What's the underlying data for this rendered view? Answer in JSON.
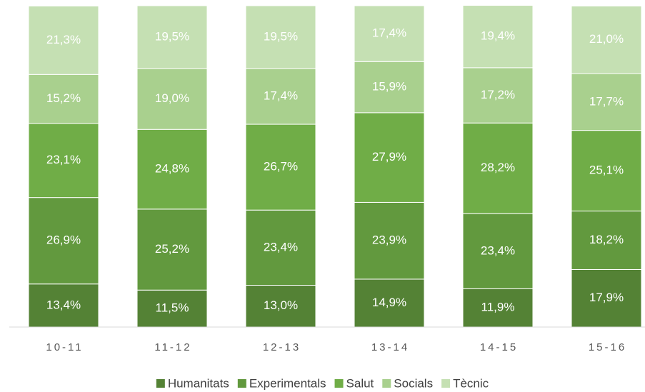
{
  "chart_data": {
    "type": "stacked_bar",
    "categories": [
      "10-11",
      "11-12",
      "12-13",
      "13-14",
      "14-15",
      "15-16"
    ],
    "ylim": [
      0,
      100
    ],
    "legend": "bottom",
    "series": [
      {
        "name": "Humanitats",
        "color": "#548235",
        "values": [
          13.4,
          11.5,
          13.0,
          14.9,
          11.9,
          17.9
        ],
        "value_labels": [
          "13,4%",
          "11,5%",
          "13,0%",
          "14,9%",
          "11,9%",
          "17,9%"
        ]
      },
      {
        "name": "Experimentals",
        "color": "#62993e",
        "values": [
          26.9,
          25.2,
          23.4,
          23.9,
          23.4,
          18.2
        ],
        "value_labels": [
          "26,9%",
          "25,2%",
          "23,4%",
          "23,9%",
          "23,4%",
          "18,2%"
        ]
      },
      {
        "name": "Salut",
        "color": "#70ad47",
        "values": [
          23.1,
          24.8,
          26.7,
          27.9,
          28.2,
          25.1
        ],
        "value_labels": [
          "23,1%",
          "24,8%",
          "26,7%",
          "27,9%",
          "28,2%",
          "25,1%"
        ]
      },
      {
        "name": "Socials",
        "color": "#a9d08e",
        "values": [
          15.2,
          19.0,
          17.4,
          15.9,
          17.2,
          17.7
        ],
        "value_labels": [
          "15,2%",
          "19,0%",
          "17,4%",
          "15,9%",
          "17,2%",
          "17,7%"
        ]
      },
      {
        "name": "Tècnic",
        "color": "#c5e0b3",
        "values": [
          21.3,
          19.5,
          19.5,
          17.4,
          19.4,
          21.0
        ],
        "value_labels": [
          "21,3%",
          "19,5%",
          "19,5%",
          "17,4%",
          "19,4%",
          "21,0%"
        ]
      }
    ]
  }
}
